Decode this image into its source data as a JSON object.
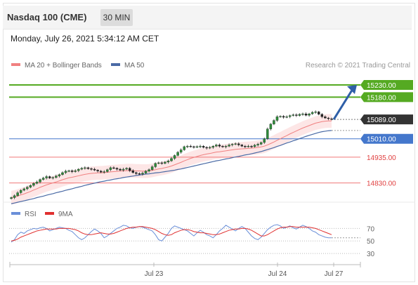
{
  "header": {
    "title": "Nasdaq 100 (CME)",
    "timeframe": "30 MIN",
    "datetime": "Monday, July 26, 2021 5:34:12 AM CET"
  },
  "legend": {
    "ma20_label": "MA 20 + Bollinger Bands",
    "ma50_label": "MA 50",
    "copyright": "Research © 2021 Trading Central"
  },
  "rsi_legend": {
    "rsi_label": "RSI",
    "ma_label": "9MA"
  },
  "colors": {
    "ma20": "#f08080",
    "bollinger_fill": "#fde2e2",
    "ma50": "#4a6aa5",
    "resistance": "#55aa22",
    "support": "#4477cc",
    "pivot": "#f07878",
    "arrow": "#2f5fa8",
    "price_tag": "#333333",
    "rsi": "#6a8fd8",
    "rsi_ma": "#e03030"
  },
  "chart_data": [
    {
      "type": "line",
      "title": "",
      "x_tick_labels": [
        "Jul 23",
        "Jul 24",
        "Jul 27"
      ],
      "ylim": [
        14760,
        15290
      ],
      "levels": [
        {
          "value": 15230.0,
          "label": "15230.00",
          "kind": "resistance"
        },
        {
          "value": 15180.0,
          "label": "15180.00",
          "kind": "resistance"
        },
        {
          "value": 15089.0,
          "label": "15089.00",
          "kind": "last-price"
        },
        {
          "value": 15010.0,
          "label": "15010.00",
          "kind": "support"
        },
        {
          "value": 14935.0,
          "label": "14935.00",
          "kind": "pivot"
        },
        {
          "value": 14830.0,
          "label": "14830.00",
          "kind": "pivot"
        }
      ],
      "close_series": [
        14770,
        14778,
        14790,
        14800,
        14806,
        14812,
        14820,
        14828,
        14834,
        14844,
        14850,
        14856,
        14850,
        14852,
        14858,
        14864,
        14872,
        14878,
        14880,
        14876,
        14880,
        14886,
        14890,
        14892,
        14888,
        14886,
        14882,
        14878,
        14874,
        14876,
        14884,
        14892,
        14890,
        14886,
        14882,
        14886,
        14890,
        14880,
        14872,
        14868,
        14866,
        14870,
        14878,
        14884,
        14896,
        14910,
        14912,
        14910,
        14915,
        14920,
        14930,
        14942,
        14955,
        14965,
        14978,
        14980,
        14978,
        14976,
        14978,
        14980,
        14975,
        14972,
        14975,
        14980,
        14985,
        14980,
        14977,
        14980,
        14985,
        14988,
        14990,
        14985,
        14980,
        14978,
        14980,
        14978,
        14984,
        14988,
        14995,
        15010,
        15050,
        15070,
        15085,
        15100,
        15102,
        15098,
        15100,
        15105,
        15108,
        15105,
        15110,
        15112,
        15106,
        15112,
        15118,
        15120,
        15110,
        15100,
        15095,
        15092,
        15089
      ],
      "ma20_series": [
        14770,
        14772,
        14776,
        14781,
        14785,
        14790,
        14795,
        14801,
        14806,
        14812,
        14817,
        14822,
        14826,
        14830,
        14834,
        14838,
        14843,
        14847,
        14851,
        14853,
        14856,
        14859,
        14862,
        14865,
        14867,
        14869,
        14870,
        14871,
        14871,
        14872,
        14873,
        14875,
        14876,
        14877,
        14878,
        14879,
        14880,
        14880,
        14880,
        14879,
        14879,
        14878,
        14878,
        14879,
        14881,
        14884,
        14887,
        14889,
        14892,
        14895,
        14899,
        14904,
        14909,
        14914,
        14920,
        14925,
        14930,
        14934,
        14938,
        14942,
        14945,
        14948,
        14950,
        14953,
        14956,
        14957,
        14959,
        14961,
        14963,
        14965,
        14967,
        14968,
        14969,
        14970,
        14971,
        14972,
        14973,
        14975,
        14977,
        14980,
        14985,
        14991,
        14997,
        15004,
        15010,
        15017,
        15023,
        15030,
        15036,
        15042,
        15048,
        15054,
        15059,
        15064,
        15069,
        15074,
        15077,
        15080,
        15082,
        15083,
        15083
      ],
      "ma50_series": [
        14745,
        14748,
        14751,
        14754,
        14757,
        14760,
        14763,
        14766,
        14770,
        14773,
        14776,
        14780,
        14783,
        14786,
        14790,
        14793,
        14796,
        14800,
        14803,
        14806,
        14810,
        14813,
        14816,
        14820,
        14823,
        14826,
        14829,
        14832,
        14835,
        14837,
        14840,
        14842,
        14845,
        14847,
        14849,
        14852,
        14854,
        14856,
        14858,
        14860,
        14862,
        14864,
        14866,
        14867,
        14869,
        14871,
        14872,
        14874,
        14876,
        14878,
        14880,
        14882,
        14885,
        14887,
        14890,
        14893,
        14896,
        14899,
        14902,
        14905,
        14908,
        14911,
        14914,
        14917,
        14920,
        14922,
        14925,
        14928,
        14930,
        14933,
        14936,
        14938,
        14941,
        14944,
        14946,
        14949,
        14952,
        14955,
        14958,
        14962,
        14966,
        14970,
        14974,
        14979,
        14983,
        14988,
        14993,
        14997,
        15002,
        15006,
        15011,
        15015,
        15020,
        15024,
        15028,
        15032,
        15036,
        15039,
        15041,
        15043,
        15044
      ],
      "bollinger_band_width": 28
    },
    {
      "type": "line",
      "title": "",
      "ylim": [
        20,
        85
      ],
      "y_tick_labels": [
        "70",
        "50",
        "30"
      ],
      "rsi_series": [
        48,
        52,
        60,
        64,
        62,
        66,
        68,
        70,
        69,
        71,
        72,
        70,
        66,
        68,
        70,
        72,
        71,
        70,
        67,
        65,
        60,
        55,
        52,
        55,
        60,
        65,
        69,
        66,
        62,
        55,
        58,
        62,
        66,
        70,
        72,
        75,
        74,
        71,
        70,
        72,
        73,
        72,
        70,
        68,
        66,
        60,
        52,
        50,
        56,
        62,
        70,
        74,
        72,
        70,
        68,
        66,
        62,
        58,
        63,
        67,
        64,
        60,
        58,
        55,
        60,
        66,
        70,
        75,
        72,
        69,
        66,
        70,
        73,
        70,
        64,
        58,
        54,
        52,
        56,
        62,
        68,
        72,
        75,
        76,
        74,
        70,
        72,
        74,
        71,
        69,
        72,
        75,
        73,
        70,
        66,
        64,
        60,
        58,
        56,
        55,
        55
      ],
      "rsi_ma_series": [
        50,
        51,
        53,
        56,
        58,
        60,
        62,
        64,
        66,
        67,
        68,
        69,
        69,
        69,
        69,
        70,
        70,
        70,
        70,
        69,
        68,
        66,
        63,
        61,
        60,
        60,
        61,
        62,
        63,
        62,
        61,
        61,
        62,
        64,
        66,
        68,
        70,
        71,
        72,
        72,
        73,
        73,
        72,
        71,
        70,
        68,
        65,
        62,
        60,
        59,
        60,
        63,
        65,
        67,
        68,
        68,
        67,
        65,
        64,
        63,
        63,
        62,
        61,
        60,
        60,
        61,
        63,
        65,
        67,
        68,
        69,
        69,
        70,
        70,
        69,
        67,
        64,
        61,
        58,
        58,
        60,
        63,
        66,
        69,
        71,
        72,
        72,
        73,
        73,
        72,
        72,
        72,
        72,
        72,
        71,
        70,
        68,
        66,
        64,
        62,
        60
      ]
    }
  ]
}
